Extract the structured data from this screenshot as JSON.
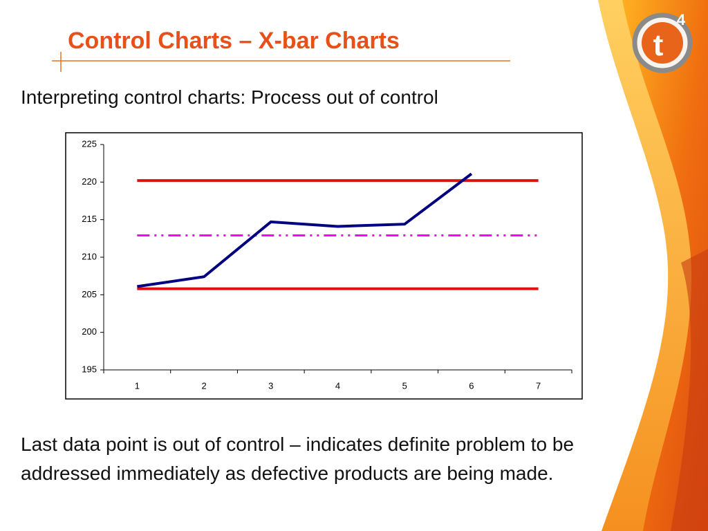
{
  "slide": {
    "title": "Control Charts – X-bar Charts",
    "subtitle": "Interpreting control charts: Process out of control",
    "body": "Last data point is out of control – indicates definite problem to be addressed immediately as defective products are being made.",
    "logo": {
      "letter": "t",
      "superscript": "4"
    }
  },
  "chart_data": {
    "type": "line",
    "categories": [
      "1",
      "2",
      "3",
      "4",
      "5",
      "6",
      "7"
    ],
    "series": [
      {
        "color": "#e01010",
        "values": [
          220.2,
          220.2,
          220.2,
          220.2,
          220.2,
          220.2,
          220.2
        ]
      },
      {
        "color": "#e01010",
        "values": [
          205.8,
          205.8,
          205.8,
          205.8,
          205.8,
          205.8,
          205.8
        ]
      },
      {
        "color": "#ff00ff",
        "dash": "dash-dot-dot",
        "values": [
          212.9,
          212.9,
          212.9,
          212.9,
          212.9,
          212.9,
          212.9
        ]
      },
      {
        "color": "#000080",
        "values": [
          206.1,
          207.4,
          214.7,
          214.1,
          214.4,
          221.1,
          null
        ]
      }
    ],
    "ylim": [
      195,
      225
    ],
    "yticks": [
      195,
      200,
      205,
      210,
      215,
      220,
      225
    ],
    "grid": false
  }
}
